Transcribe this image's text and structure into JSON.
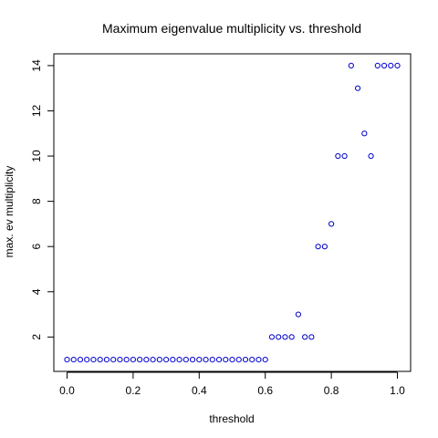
{
  "chart_data": {
    "type": "scatter",
    "title": "Maximum eigenvalue multiplicity vs. threshold",
    "xlabel": "threshold",
    "ylabel": "max. ev multiplicity",
    "xlim": [
      -0.04,
      1.04
    ],
    "ylim": [
      0.48,
      14.52
    ],
    "xticks": [
      0.0,
      0.2,
      0.4,
      0.6,
      0.8,
      1.0
    ],
    "xtick_labels": [
      "0.0",
      "0.2",
      "0.4",
      "0.6",
      "0.8",
      "1.0"
    ],
    "yticks": [
      2,
      4,
      6,
      8,
      10,
      12,
      14
    ],
    "ytick_labels": [
      "2",
      "4",
      "6",
      "8",
      "10",
      "12",
      "14"
    ],
    "grid": false,
    "legend": "none",
    "marker_color": "#0000cd",
    "x": [
      0.0,
      0.02,
      0.04,
      0.06,
      0.08,
      0.1,
      0.12,
      0.14,
      0.16,
      0.18,
      0.2,
      0.22,
      0.24,
      0.26,
      0.28,
      0.3,
      0.32,
      0.34,
      0.36,
      0.38,
      0.4,
      0.42,
      0.44,
      0.46,
      0.48,
      0.5,
      0.52,
      0.54,
      0.56,
      0.58,
      0.6,
      0.62,
      0.64,
      0.66,
      0.68,
      0.7,
      0.72,
      0.74,
      0.76,
      0.78,
      0.8,
      0.82,
      0.84,
      0.86,
      0.88,
      0.9,
      0.92,
      0.94,
      0.96,
      0.98,
      1.0
    ],
    "y": [
      1,
      1,
      1,
      1,
      1,
      1,
      1,
      1,
      1,
      1,
      1,
      1,
      1,
      1,
      1,
      1,
      1,
      1,
      1,
      1,
      1,
      1,
      1,
      1,
      1,
      1,
      1,
      1,
      1,
      1,
      1,
      2,
      2,
      2,
      2,
      3,
      2,
      2,
      6,
      6,
      7,
      10,
      10,
      14,
      13,
      11,
      10,
      14,
      14,
      14,
      14
    ]
  }
}
